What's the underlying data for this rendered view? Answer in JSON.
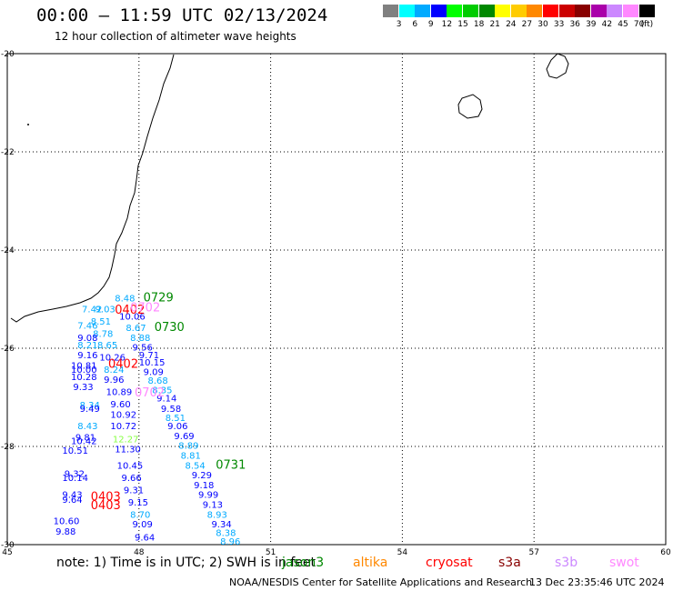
{
  "header": {
    "title": "00:00 — 11:59 UTC 02/13/2024",
    "subtitle": "12 hour collection of altimeter wave heights"
  },
  "legend": {
    "unit": "(ft)",
    "bins": [
      {
        "label": "3",
        "color": "#808080"
      },
      {
        "label": "6",
        "color": "#00ffff"
      },
      {
        "label": "9",
        "color": "#00aaff"
      },
      {
        "label": "12",
        "color": "#0000ff"
      },
      {
        "label": "15",
        "color": "#00ff00"
      },
      {
        "label": "18",
        "color": "#00cc00"
      },
      {
        "label": "21",
        "color": "#008800"
      },
      {
        "label": "24",
        "color": "#ffff00"
      },
      {
        "label": "27",
        "color": "#ffcc00"
      },
      {
        "label": "30",
        "color": "#ff8800"
      },
      {
        "label": "33",
        "color": "#ff0000"
      },
      {
        "label": "36",
        "color": "#cc0000"
      },
      {
        "label": "39",
        "color": "#880000"
      },
      {
        "label": "42",
        "color": "#aa00aa"
      },
      {
        "label": "45",
        "color": "#cc88ff"
      },
      {
        "label": "70",
        "color": "#ff88ff"
      },
      {
        "label": "",
        "color": "#000000"
      }
    ]
  },
  "map": {
    "lon_range": [
      45,
      60
    ],
    "lat_range": [
      -20,
      -30
    ],
    "lon_ticks": [
      "45",
      "48",
      "51",
      "54",
      "57",
      "60"
    ],
    "lat_ticks": [
      "-20",
      "-22",
      "-24",
      "-26",
      "-28",
      "-30"
    ],
    "grid": "dotted"
  },
  "pass_labels": [
    {
      "text": "0729",
      "lon": 48.1,
      "lat": -25.05,
      "color": "#008800"
    },
    {
      "text": "0402",
      "lon": 47.45,
      "lat": -25.3,
      "color": "#ff0000"
    },
    {
      "text": "0702",
      "lon": 47.8,
      "lat": -25.25,
      "color": "#ff88ff"
    },
    {
      "text": "0730",
      "lon": 48.35,
      "lat": -25.65,
      "color": "#008800"
    },
    {
      "text": "0402",
      "lon": 47.3,
      "lat": -26.4,
      "color": "#ff0000"
    },
    {
      "text": "0702",
      "lon": 47.9,
      "lat": -26.98,
      "color": "#ff88ff"
    },
    {
      "text": "0731",
      "lon": 49.75,
      "lat": -28.45,
      "color": "#008800"
    },
    {
      "text": "0403",
      "lon": 46.9,
      "lat": -29.1,
      "color": "#ff0000"
    },
    {
      "text": "0403",
      "lon": 46.9,
      "lat": -29.28,
      "color": "#ff0000"
    }
  ],
  "wave_heights": [
    {
      "text": "8.48",
      "lon": 47.45,
      "lat": -25.05,
      "color": "#00aaff"
    },
    {
      "text": "7.42",
      "lon": 46.7,
      "lat": -25.27,
      "color": "#00aaff"
    },
    {
      "text": "9.03",
      "lon": 47.0,
      "lat": -25.27,
      "color": "#00aaff"
    },
    {
      "text": "10.06",
      "lon": 47.55,
      "lat": -25.42,
      "color": "#0000ff"
    },
    {
      "text": "8.51",
      "lon": 46.9,
      "lat": -25.52,
      "color": "#00aaff"
    },
    {
      "text": "7.46",
      "lon": 46.6,
      "lat": -25.6,
      "color": "#00aaff"
    },
    {
      "text": "8.67",
      "lon": 47.7,
      "lat": -25.65,
      "color": "#00aaff"
    },
    {
      "text": "8.78",
      "lon": 46.95,
      "lat": -25.77,
      "color": "#00aaff"
    },
    {
      "text": "8.88",
      "lon": 47.8,
      "lat": -25.85,
      "color": "#00aaff"
    },
    {
      "text": "9.08",
      "lon": 46.6,
      "lat": -25.85,
      "color": "#0000ff"
    },
    {
      "text": "8.65",
      "lon": 47.05,
      "lat": -26.0,
      "color": "#00aaff"
    },
    {
      "text": "8.21",
      "lon": 46.6,
      "lat": -26.0,
      "color": "#00aaff"
    },
    {
      "text": "9.56",
      "lon": 47.85,
      "lat": -26.05,
      "color": "#0000ff"
    },
    {
      "text": "9.16",
      "lon": 46.6,
      "lat": -26.2,
      "color": "#0000ff"
    },
    {
      "text": "10.26",
      "lon": 47.1,
      "lat": -26.25,
      "color": "#0000ff"
    },
    {
      "text": "9.71",
      "lon": 48.0,
      "lat": -26.2,
      "color": "#0000ff"
    },
    {
      "text": "10.81",
      "lon": 46.45,
      "lat": -26.42,
      "color": "#0000ff"
    },
    {
      "text": "10.15",
      "lon": 48.0,
      "lat": -26.35,
      "color": "#0000ff"
    },
    {
      "text": "10.00",
      "lon": 46.45,
      "lat": -26.5,
      "color": "#0000ff"
    },
    {
      "text": "8.24",
      "lon": 47.2,
      "lat": -26.5,
      "color": "#00aaff"
    },
    {
      "text": "9.09",
      "lon": 48.1,
      "lat": -26.55,
      "color": "#0000ff"
    },
    {
      "text": "10.28",
      "lon": 46.45,
      "lat": -26.65,
      "color": "#0000ff"
    },
    {
      "text": "9.96",
      "lon": 47.2,
      "lat": -26.7,
      "color": "#0000ff"
    },
    {
      "text": "8.68",
      "lon": 48.2,
      "lat": -26.72,
      "color": "#00aaff"
    },
    {
      "text": "9.33",
      "lon": 46.5,
      "lat": -26.85,
      "color": "#0000ff"
    },
    {
      "text": "10.89",
      "lon": 47.25,
      "lat": -26.95,
      "color": "#0000ff"
    },
    {
      "text": "8.35",
      "lon": 48.3,
      "lat": -26.92,
      "color": "#00aaff"
    },
    {
      "text": "9.14",
      "lon": 48.4,
      "lat": -27.08,
      "color": "#0000ff"
    },
    {
      "text": "8.34",
      "lon": 46.65,
      "lat": -27.22,
      "color": "#00aaff"
    },
    {
      "text": "9.60",
      "lon": 47.35,
      "lat": -27.2,
      "color": "#0000ff"
    },
    {
      "text": "9.49",
      "lon": 46.65,
      "lat": -27.3,
      "color": "#0000ff"
    },
    {
      "text": "9.58",
      "lon": 48.5,
      "lat": -27.3,
      "color": "#0000ff"
    },
    {
      "text": "10.92",
      "lon": 47.35,
      "lat": -27.42,
      "color": "#0000ff"
    },
    {
      "text": "8.51",
      "lon": 48.6,
      "lat": -27.48,
      "color": "#00aaff"
    },
    {
      "text": "8.43",
      "lon": 46.6,
      "lat": -27.65,
      "color": "#00aaff"
    },
    {
      "text": "10.72",
      "lon": 47.35,
      "lat": -27.65,
      "color": "#0000ff"
    },
    {
      "text": "9.06",
      "lon": 48.65,
      "lat": -27.65,
      "color": "#0000ff"
    },
    {
      "text": "9.81",
      "lon": 46.55,
      "lat": -27.88,
      "color": "#0000ff"
    },
    {
      "text": "12.27",
      "lon": 47.4,
      "lat": -27.92,
      "color": "#88ff44"
    },
    {
      "text": "9.69",
      "lon": 48.8,
      "lat": -27.85,
      "color": "#0000ff"
    },
    {
      "text": "10.42",
      "lon": 46.45,
      "lat": -27.95,
      "color": "#0000ff"
    },
    {
      "text": "8.89",
      "lon": 48.9,
      "lat": -28.05,
      "color": "#00aaff"
    },
    {
      "text": "10.51",
      "lon": 46.25,
      "lat": -28.15,
      "color": "#0000ff"
    },
    {
      "text": "11.30",
      "lon": 47.45,
      "lat": -28.12,
      "color": "#0000ff"
    },
    {
      "text": "8.81",
      "lon": 48.95,
      "lat": -28.25,
      "color": "#00aaff"
    },
    {
      "text": "10.45",
      "lon": 47.5,
      "lat": -28.45,
      "color": "#0000ff"
    },
    {
      "text": "8.54",
      "lon": 49.05,
      "lat": -28.45,
      "color": "#00aaff"
    },
    {
      "text": "9.32",
      "lon": 46.3,
      "lat": -28.62,
      "color": "#0000ff"
    },
    {
      "text": "9.66",
      "lon": 47.6,
      "lat": -28.7,
      "color": "#0000ff"
    },
    {
      "text": "9.29",
      "lon": 49.2,
      "lat": -28.65,
      "color": "#0000ff"
    },
    {
      "text": "10.14",
      "lon": 46.25,
      "lat": -28.7,
      "color": "#0000ff"
    },
    {
      "text": "9.18",
      "lon": 49.25,
      "lat": -28.85,
      "color": "#0000ff"
    },
    {
      "text": "9.31",
      "lon": 47.65,
      "lat": -28.95,
      "color": "#0000ff"
    },
    {
      "text": "9.43",
      "lon": 46.25,
      "lat": -29.05,
      "color": "#0000ff"
    },
    {
      "text": "9.99",
      "lon": 49.35,
      "lat": -29.05,
      "color": "#0000ff"
    },
    {
      "text": "9.64",
      "lon": 46.25,
      "lat": -29.15,
      "color": "#0000ff"
    },
    {
      "text": "9.15",
      "lon": 47.75,
      "lat": -29.2,
      "color": "#0000ff"
    },
    {
      "text": "9.13",
      "lon": 49.45,
      "lat": -29.25,
      "color": "#0000ff"
    },
    {
      "text": "8.70",
      "lon": 47.8,
      "lat": -29.45,
      "color": "#00aaff"
    },
    {
      "text": "8.93",
      "lon": 49.55,
      "lat": -29.45,
      "color": "#00aaff"
    },
    {
      "text": "10.60",
      "lon": 46.05,
      "lat": -29.58,
      "color": "#0000ff"
    },
    {
      "text": "9.34",
      "lon": 49.65,
      "lat": -29.65,
      "color": "#0000ff"
    },
    {
      "text": "9.09",
      "lon": 47.85,
      "lat": -29.65,
      "color": "#0000ff"
    },
    {
      "text": "9.88",
      "lon": 46.1,
      "lat": -29.8,
      "color": "#0000ff"
    },
    {
      "text": "8.38",
      "lon": 49.75,
      "lat": -29.82,
      "color": "#00aaff"
    },
    {
      "text": "9.64",
      "lon": 47.9,
      "lat": -29.92,
      "color": "#0000ff"
    },
    {
      "text": "8.96",
      "lon": 49.85,
      "lat": -30.0,
      "color": "#00aaff"
    }
  ],
  "footer": {
    "note": "note:  1) Time is in UTC;  2) SWH is in feet",
    "satellites": [
      {
        "name": "jason3",
        "color": "#008800"
      },
      {
        "name": "altika",
        "color": "#ff8800"
      },
      {
        "name": "cryosat",
        "color": "#ff0000"
      },
      {
        "name": "s3a",
        "color": "#880000"
      },
      {
        "name": "s3b",
        "color": "#cc88ff"
      },
      {
        "name": "swot",
        "color": "#ff88ff"
      }
    ],
    "credit": "NOAA/NESDIS Center for Satellite Applications and Research",
    "generated": "13 Dec 23:35:46 UTC 2024"
  }
}
